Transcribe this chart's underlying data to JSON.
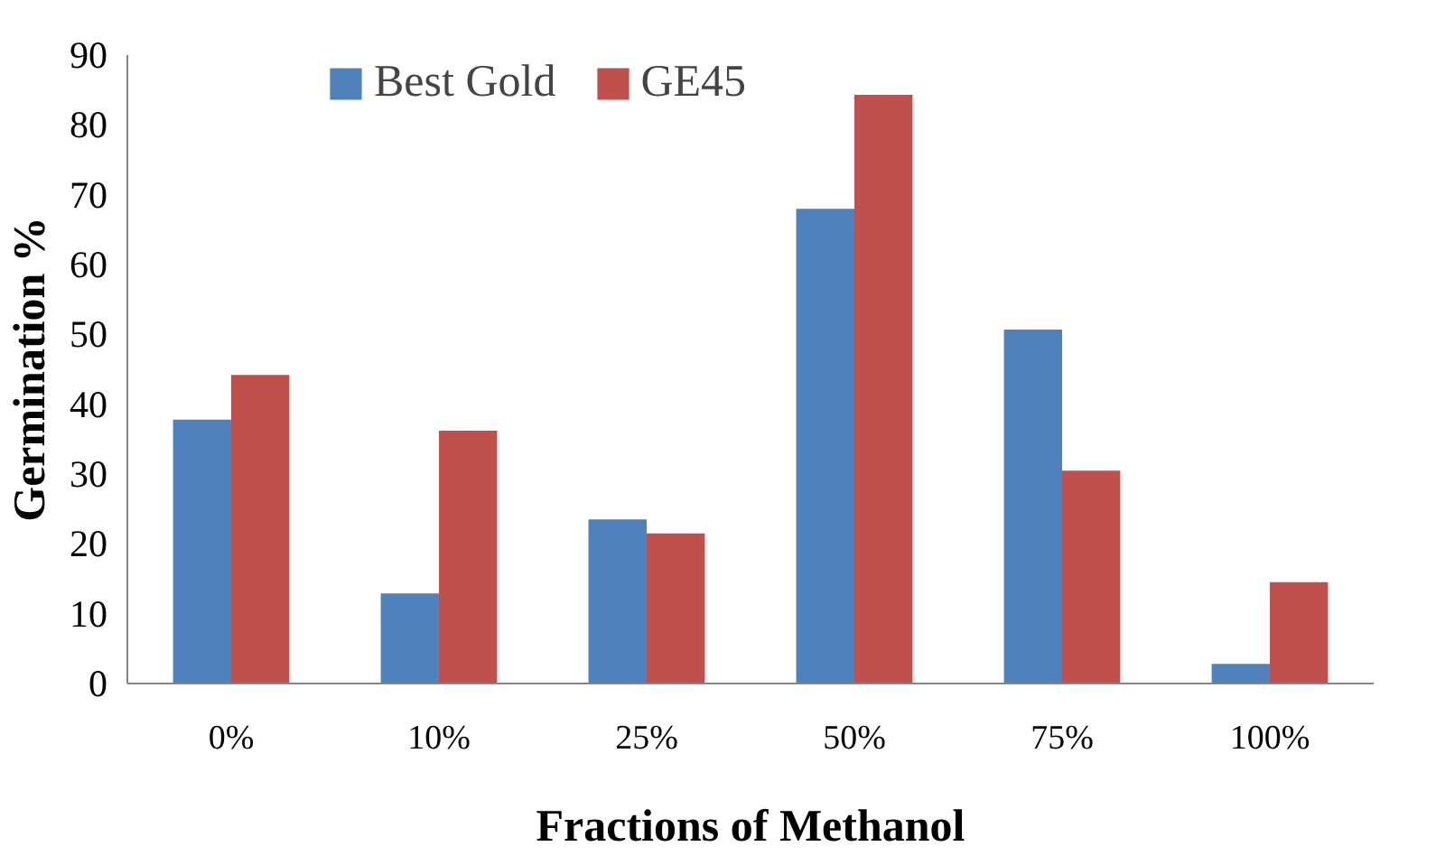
{
  "chart_data": {
    "type": "bar",
    "xlabel": "Fractions of Methanol",
    "ylabel": "Germination %",
    "categories": [
      "0%",
      "10%",
      "25%",
      "50%",
      "75%",
      "100%"
    ],
    "series": [
      {
        "name": "Best Gold",
        "color": "#4f81bd",
        "values": [
          37.8,
          12.9,
          23.5,
          68,
          50.7,
          2.8
        ]
      },
      {
        "name": "GE45",
        "color": "#c0504d",
        "values": [
          44.2,
          36.2,
          21.5,
          84.3,
          30.5,
          14.5
        ]
      }
    ],
    "ylim": [
      0,
      90
    ],
    "yticks": [
      0,
      10,
      20,
      30,
      40,
      50,
      60,
      70,
      80,
      90
    ],
    "grid": false,
    "legend": "top"
  }
}
